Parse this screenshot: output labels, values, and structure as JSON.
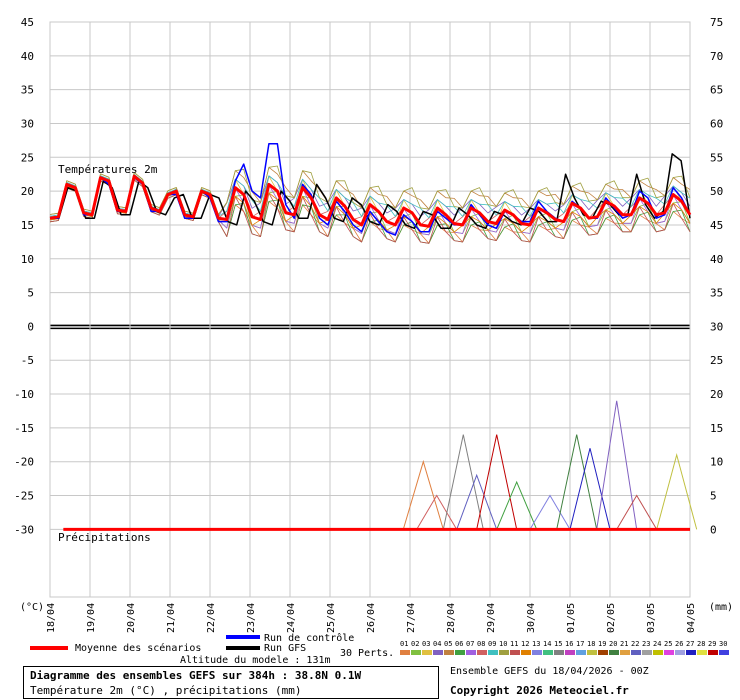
{
  "chart_data": {
    "type": "line",
    "title": "Diagramme des ensembles GEFS sur 384h : 38.8N 0.1W",
    "subtitle": "Température 2m (°C) , précipitations (mm)",
    "left_axis_unit": "(°C)",
    "right_axis_unit": "(mm)",
    "left_ticks": [
      45,
      40,
      35,
      30,
      25,
      20,
      15,
      10,
      5,
      0,
      -5,
      -10,
      -15,
      -20,
      -25,
      -30
    ],
    "right_ticks": [
      75,
      70,
      65,
      60,
      55,
      50,
      45,
      40,
      35,
      30,
      25,
      20,
      15,
      10,
      5,
      0
    ],
    "ylim": [
      -40,
      45
    ],
    "x_dates": [
      "18/04",
      "19/04",
      "20/04",
      "21/04",
      "22/04",
      "23/04",
      "24/04",
      "25/04",
      "26/04",
      "27/04",
      "28/04",
      "29/04",
      "30/04",
      "01/05",
      "02/05",
      "03/05",
      "04/05"
    ],
    "temp_label": "Températures 2m",
    "precip_label": "Précipitations",
    "grid": true,
    "temp_mean": [
      16.0,
      16.2,
      21.0,
      20.5,
      16.8,
      16.5,
      22.0,
      21.5,
      17.2,
      17.0,
      22.2,
      21.2,
      17.5,
      17.0,
      19.5,
      20.0,
      16.5,
      16.2,
      20.0,
      19.5,
      16.0,
      15.8,
      20.5,
      19.5,
      16.2,
      15.8,
      21.0,
      20.0,
      16.8,
      16.5,
      20.5,
      19.0,
      16.5,
      15.8,
      19.0,
      17.8,
      15.8,
      15.0,
      18.0,
      17.0,
      15.5,
      15.0,
      17.5,
      16.8,
      15.0,
      14.8,
      17.5,
      16.5,
      15.2,
      15.0,
      17.5,
      16.8,
      15.5,
      15.2,
      17.2,
      16.5,
      15.2,
      15.0,
      17.5,
      16.8,
      15.8,
      15.5,
      18.2,
      17.5,
      16.0,
      16.2,
      18.5,
      17.8,
      16.5,
      16.5,
      19.0,
      18.2,
      16.5,
      16.8,
      19.5,
      18.5,
      16.5
    ],
    "temp_control": [
      16.0,
      16.0,
      21.0,
      20.5,
      16.5,
      16.5,
      22.0,
      21.0,
      17.0,
      17.0,
      22.0,
      21.0,
      17.0,
      17.0,
      19.5,
      19.5,
      16.0,
      16.0,
      20.0,
      19.0,
      15.5,
      15.5,
      21.5,
      24.0,
      20.0,
      19.0,
      27.0,
      27.0,
      18.0,
      16.0,
      21.0,
      19.5,
      16.0,
      15.0,
      18.5,
      17.0,
      15.0,
      14.0,
      17.0,
      15.5,
      14.0,
      13.5,
      16.5,
      15.5,
      14.0,
      14.0,
      17.0,
      16.0,
      15.0,
      15.0,
      18.0,
      16.5,
      15.0,
      14.5,
      17.0,
      16.5,
      15.5,
      15.5,
      18.5,
      17.0,
      16.0,
      15.5,
      18.5,
      17.5,
      16.0,
      16.0,
      19.0,
      17.5,
      16.0,
      16.5,
      20.0,
      19.0,
      16.0,
      16.5,
      20.5,
      19.0,
      16.5
    ],
    "temp_gfs": [
      16.0,
      16.0,
      20.5,
      20.0,
      16.0,
      16.0,
      21.5,
      20.5,
      16.5,
      16.5,
      21.5,
      20.5,
      17.0,
      16.5,
      19.0,
      19.5,
      16.0,
      16.0,
      19.5,
      19.0,
      15.5,
      15.0,
      20.0,
      18.5,
      15.5,
      15.0,
      20.0,
      18.5,
      16.0,
      16.0,
      21.0,
      19.0,
      16.0,
      15.5,
      19.0,
      18.0,
      15.5,
      15.0,
      18.0,
      17.0,
      15.0,
      14.5,
      17.0,
      16.5,
      14.5,
      14.5,
      17.5,
      16.5,
      15.0,
      14.5,
      17.0,
      16.5,
      15.5,
      15.0,
      17.5,
      17.0,
      15.5,
      15.5,
      22.5,
      19.0,
      16.5,
      16.0,
      18.5,
      18.0,
      16.5,
      16.5,
      22.5,
      18.0,
      16.0,
      17.0,
      25.5,
      24.5,
      16.0
    ],
    "precip_members": [
      {
        "at": 56,
        "value": 10.0
      },
      {
        "at": 58,
        "value": 5.0
      },
      {
        "at": 62,
        "value": 14.0
      },
      {
        "at": 64,
        "value": 8.0
      },
      {
        "at": 67,
        "value": 14.0
      },
      {
        "at": 70,
        "value": 7.0
      },
      {
        "at": 75,
        "value": 5.0
      },
      {
        "at": 79,
        "value": 14.0
      },
      {
        "at": 81,
        "value": 12.0
      },
      {
        "at": 85,
        "value": 19.0
      },
      {
        "at": 88,
        "value": 5.0
      },
      {
        "at": 94,
        "value": 11.0
      }
    ],
    "legend": {
      "mean": "Moyenne des scénarios",
      "control": "Run de contrôle",
      "gfs": "Run GFS",
      "perts": "30 Perts.",
      "pert_ids": [
        "01",
        "02",
        "03",
        "04",
        "05",
        "06",
        "07",
        "08",
        "09",
        "10",
        "11",
        "12",
        "13",
        "14",
        "15",
        "16",
        "17",
        "18",
        "19",
        "20",
        "21",
        "22",
        "23",
        "24",
        "25",
        "26",
        "27",
        "28",
        "29",
        "30"
      ],
      "pert_colors": [
        "#e08040",
        "#80c040",
        "#e0c040",
        "#8060c0",
        "#c08040",
        "#40a040",
        "#a060e0",
        "#d06060",
        "#40c0c0",
        "#a0a040",
        "#c05050",
        "#e08000",
        "#8080e0",
        "#40c080",
        "#808080",
        "#c040c0",
        "#60a0e0",
        "#c0c040",
        "#a04000",
        "#408040",
        "#e0a040",
        "#6060c0",
        "#a0a0a0",
        "#c0c000",
        "#e040e0",
        "#a0a0e0",
        "#2020c0",
        "#e0e040",
        "#c00000",
        "#4040e0"
      ],
      "color_mean": "#ff0000",
      "color_control": "#0000ff",
      "color_gfs": "#000000"
    }
  },
  "footer": {
    "altitude": "Altitude du modele : 131m",
    "ensemble": "Ensemble GEFS du 18/04/2026 - 00Z",
    "copyright": "Copyright 2026 Meteociel.fr"
  }
}
